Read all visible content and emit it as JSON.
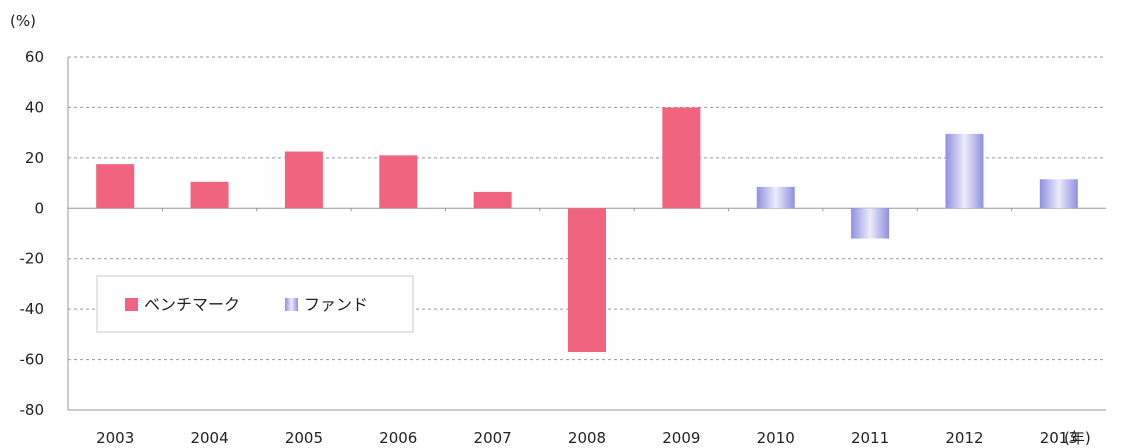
{
  "chart_data": {
    "type": "bar",
    "y_unit_label": "(%)",
    "x_unit_label": "(年)",
    "categories": [
      "2003",
      "2004",
      "2005",
      "2006",
      "2007",
      "2008",
      "2009",
      "2010",
      "2011",
      "2012",
      "2013"
    ],
    "series": [
      {
        "name": "ベンチマーク",
        "color": "#f0647f",
        "values": [
          17.5,
          10.5,
          22.5,
          21,
          6.5,
          -57,
          40,
          null,
          null,
          null,
          null
        ]
      },
      {
        "name": "ファンド",
        "color": "#8f8fe0",
        "values": [
          null,
          null,
          null,
          null,
          null,
          null,
          null,
          8.5,
          -12,
          29.5,
          11.5
        ]
      }
    ],
    "ylim": [
      -80,
      60
    ],
    "yticks": [
      -80,
      -60,
      -40,
      -20,
      0,
      20,
      40,
      60
    ],
    "grid": "horizontal-dashed",
    "legend_position": "lower-left"
  }
}
